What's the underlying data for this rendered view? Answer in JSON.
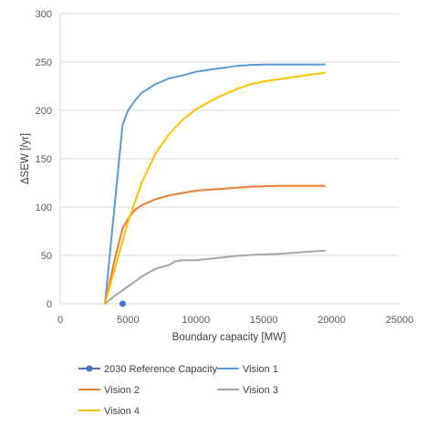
{
  "chart_data": {
    "type": "line",
    "title": "",
    "xlabel": "Boundary capacity [MW]",
    "ylabel": "ΔSEW [/yr]",
    "xlim": [
      0,
      25000
    ],
    "ylim": [
      0,
      300
    ],
    "xticks": [
      0,
      5000,
      10000,
      15000,
      20000,
      25000
    ],
    "yticks": [
      0,
      50,
      100,
      150,
      200,
      250,
      300
    ],
    "grid": "horizontal",
    "legend_position": "bottom",
    "series": [
      {
        "name": "2030 Reference Capacity",
        "kind": "marker",
        "color": "#4472C4",
        "x": [
          4600
        ],
        "y": [
          0
        ]
      },
      {
        "name": "Vision 1",
        "kind": "line",
        "color": "#5B9BD5",
        "x": [
          3300,
          4000,
          4600,
          5000,
          5500,
          6000,
          7000,
          8000,
          9000,
          10000,
          11000,
          12000,
          13000,
          14000,
          15000,
          16000,
          17000,
          18000,
          19500
        ],
        "y": [
          0,
          100,
          185,
          200,
          210,
          218,
          227,
          233,
          236,
          240,
          242,
          244,
          246,
          247,
          247.5,
          247.5,
          247.5,
          247.5,
          247.5
        ]
      },
      {
        "name": "Vision 2",
        "kind": "line",
        "color": "#ED7D31",
        "x": [
          3300,
          4000,
          4600,
          5000,
          5500,
          6000,
          7000,
          8000,
          9000,
          10000,
          11000,
          12000,
          13000,
          14000,
          15000,
          16000,
          17000,
          18000,
          19500
        ],
        "y": [
          0,
          45,
          78,
          88,
          97,
          102,
          108,
          112,
          114.5,
          117,
          118,
          119,
          120,
          121,
          121.5,
          122,
          122,
          122,
          122
        ]
      },
      {
        "name": "Vision 3",
        "kind": "line",
        "color": "#A5A5A5",
        "x": [
          3300,
          4000,
          5000,
          6000,
          7000,
          8000,
          8500,
          9000,
          10000,
          11000,
          12000,
          13000,
          14000,
          15000,
          16000,
          17000,
          18000,
          19500
        ],
        "y": [
          0,
          8,
          18,
          28,
          36,
          40,
          44,
          45,
          45,
          46.5,
          48,
          49.5,
          50.5,
          51,
          51.5,
          52.5,
          53.5,
          55
        ]
      },
      {
        "name": "Vision 4",
        "kind": "line",
        "color": "#FFC000",
        "x": [
          3300,
          4000,
          5000,
          6000,
          7000,
          8000,
          9000,
          10000,
          11000,
          12000,
          13000,
          14000,
          15000,
          16000,
          17000,
          18000,
          19500
        ],
        "y": [
          0,
          35,
          85,
          125,
          155,
          175,
          190,
          201,
          209,
          216,
          222,
          227,
          230,
          232,
          234,
          236,
          239
        ]
      }
    ]
  }
}
